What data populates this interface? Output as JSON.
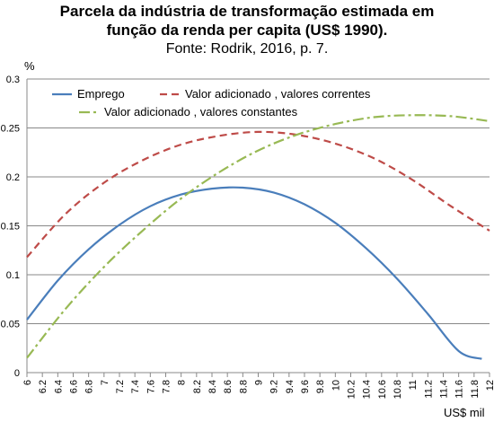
{
  "header": {
    "title_line1": "Parcela da indústria de transformação estimada em",
    "title_line2": "função da renda per capita (US$ 1990).",
    "source": "Fonte: Rodrik, 2016, p. 7."
  },
  "chart_data": {
    "type": "line",
    "ylabel": "%",
    "xlabel": "US$ mil",
    "xlim": [
      6,
      12
    ],
    "ylim": [
      0,
      0.3
    ],
    "x_ticks": [
      "6",
      "6.2",
      "6.4",
      "6.6",
      "6.8",
      "7",
      "7.2",
      "7.4",
      "7.6",
      "7.8",
      "8",
      "8.2",
      "8.4",
      "8.6",
      "8.8",
      "9",
      "9.2",
      "9.4",
      "9.6",
      "9.8",
      "10",
      "10.2",
      "10.4",
      "10.6",
      "10.8",
      "11",
      "11.2",
      "11.4",
      "11.6",
      "11.8",
      "12"
    ],
    "y_ticks": [
      "0",
      "0.05",
      "0.1",
      "0.15",
      "0.2",
      "0.25",
      "0.3"
    ],
    "grid": "horizontal",
    "legend_position": "top",
    "series": [
      {
        "name": "Emprego",
        "color": "#4a7ebb",
        "dash": "solid",
        "x": [
          6.0,
          6.4,
          6.8,
          7.2,
          7.6,
          8.0,
          8.4,
          8.8,
          9.2,
          9.6,
          10.0,
          10.4,
          10.8,
          11.2,
          11.6,
          11.9
        ],
        "y": [
          0.054,
          0.094,
          0.126,
          0.151,
          0.17,
          0.182,
          0.188,
          0.189,
          0.184,
          0.172,
          0.153,
          0.127,
          0.096,
          0.06,
          0.022,
          0.014
        ]
      },
      {
        "name": "Valor adicionado , valores correntes",
        "color": "#be4b48",
        "dash": "dashed",
        "x": [
          6.0,
          6.5,
          7.0,
          7.5,
          8.0,
          8.5,
          9.0,
          9.5,
          10.0,
          10.5,
          11.0,
          11.5,
          12.0
        ],
        "y": [
          0.118,
          0.162,
          0.194,
          0.217,
          0.233,
          0.242,
          0.246,
          0.243,
          0.234,
          0.219,
          0.197,
          0.17,
          0.145
        ]
      },
      {
        "name": "Valor adicionado , valores constantes",
        "color": "#98b954",
        "dash": "dash-dot",
        "x": [
          6.0,
          6.5,
          7.0,
          7.5,
          8.0,
          8.5,
          9.0,
          9.5,
          10.0,
          10.5,
          11.0,
          11.5,
          12.0
        ],
        "y": [
          0.015,
          0.065,
          0.108,
          0.145,
          0.178,
          0.205,
          0.227,
          0.243,
          0.254,
          0.261,
          0.263,
          0.262,
          0.257
        ]
      }
    ]
  }
}
